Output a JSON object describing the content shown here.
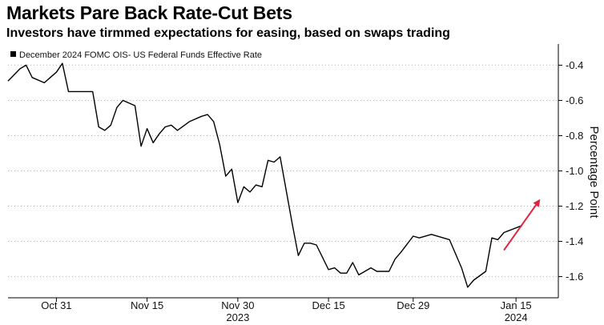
{
  "title": "Markets Pare Back Rate-Cut Bets",
  "subtitle": "Investors have tirmmed expectations for easing, based on swaps trading",
  "chart_data": {
    "type": "line",
    "title": "Markets Pare Back Rate-Cut Bets",
    "subtitle": "Investors have tirmmed expectations for easing, based on swaps trading",
    "ylabel": "Percentage Point",
    "xlabel": "",
    "ylim": [
      -1.72,
      -0.28
    ],
    "y_inverted": true,
    "y_axis_side": "right",
    "yticks": [
      -0.4,
      -0.6,
      -0.8,
      -1.0,
      -1.2,
      -1.4,
      -1.6
    ],
    "ytick_labels": [
      "-0.4",
      "-0.6",
      "-0.8",
      "-1.0",
      "-1.2",
      "-1.4",
      "-1.6"
    ],
    "xticks": [
      {
        "date": "2023-10-31",
        "label": "Oct 31"
      },
      {
        "date": "2023-11-15",
        "label": "Nov 15"
      },
      {
        "date": "2023-11-30",
        "label": "Nov 30"
      },
      {
        "date": "2023-12-15",
        "label": "Dec 15"
      },
      {
        "date": "2023-12-29",
        "label": "Dec 29"
      },
      {
        "date": "2024-01-15",
        "label": "Jan 15"
      }
    ],
    "year_labels": [
      {
        "date": "2023-11-30",
        "label": "2023"
      },
      {
        "date": "2024-01-15",
        "label": "2024"
      }
    ],
    "xlim": [
      "2023-10-23",
      "2024-01-22"
    ],
    "legend_position": "top-left",
    "grid": "horizontal",
    "series": [
      {
        "name": "December 2024 FOMC OIS- US Federal Funds Effective Rate",
        "color": "#000000",
        "points": [
          [
            "2023-10-23",
            -0.49
          ],
          [
            "2023-10-25",
            -0.42
          ],
          [
            "2023-10-26",
            -0.4
          ],
          [
            "2023-10-27",
            -0.47
          ],
          [
            "2023-10-29",
            -0.5
          ],
          [
            "2023-10-30",
            -0.47
          ],
          [
            "2023-10-31",
            -0.44
          ],
          [
            "2023-11-01",
            -0.39
          ],
          [
            "2023-11-02",
            -0.55
          ],
          [
            "2023-11-03",
            -0.55
          ],
          [
            "2023-11-06",
            -0.55
          ],
          [
            "2023-11-07",
            -0.75
          ],
          [
            "2023-11-08",
            -0.77
          ],
          [
            "2023-11-09",
            -0.74
          ],
          [
            "2023-11-10",
            -0.64
          ],
          [
            "2023-11-11",
            -0.6
          ],
          [
            "2023-11-13",
            -0.63
          ],
          [
            "2023-11-14",
            -0.86
          ],
          [
            "2023-11-15",
            -0.76
          ],
          [
            "2023-11-16",
            -0.84
          ],
          [
            "2023-11-17",
            -0.79
          ],
          [
            "2023-11-18",
            -0.75
          ],
          [
            "2023-11-19",
            -0.74
          ],
          [
            "2023-11-20",
            -0.77
          ],
          [
            "2023-11-22",
            -0.72
          ],
          [
            "2023-11-24",
            -0.69
          ],
          [
            "2023-11-25",
            -0.68
          ],
          [
            "2023-11-26",
            -0.72
          ],
          [
            "2023-11-27",
            -0.85
          ],
          [
            "2023-11-28",
            -1.03
          ],
          [
            "2023-11-29",
            -0.99
          ],
          [
            "2023-11-30",
            -1.18
          ],
          [
            "2023-12-01",
            -1.09
          ],
          [
            "2023-12-02",
            -1.12
          ],
          [
            "2023-12-03",
            -1.08
          ],
          [
            "2023-12-04",
            -1.09
          ],
          [
            "2023-12-05",
            -0.94
          ],
          [
            "2023-12-06",
            -0.95
          ],
          [
            "2023-12-07",
            -0.92
          ],
          [
            "2023-12-09",
            -1.3
          ],
          [
            "2023-12-10",
            -1.48
          ],
          [
            "2023-12-11",
            -1.41
          ],
          [
            "2023-12-12",
            -1.41
          ],
          [
            "2023-12-13",
            -1.42
          ],
          [
            "2023-12-15",
            -1.56
          ],
          [
            "2023-12-16",
            -1.55
          ],
          [
            "2023-12-17",
            -1.58
          ],
          [
            "2023-12-18",
            -1.58
          ],
          [
            "2023-12-19",
            -1.52
          ],
          [
            "2023-12-20",
            -1.59
          ],
          [
            "2023-12-22",
            -1.55
          ],
          [
            "2023-12-23",
            -1.57
          ],
          [
            "2023-12-25",
            -1.57
          ],
          [
            "2023-12-26",
            -1.5
          ],
          [
            "2023-12-27",
            -1.46
          ],
          [
            "2023-12-29",
            -1.37
          ],
          [
            "2023-12-30",
            -1.38
          ],
          [
            "2024-01-01",
            -1.36
          ],
          [
            "2024-01-04",
            -1.39
          ],
          [
            "2024-01-06",
            -1.55
          ],
          [
            "2024-01-07",
            -1.66
          ],
          [
            "2024-01-08",
            -1.62
          ],
          [
            "2024-01-10",
            -1.57
          ],
          [
            "2024-01-11",
            -1.38
          ],
          [
            "2024-01-12",
            -1.39
          ],
          [
            "2024-01-13",
            -1.35
          ],
          [
            "2024-01-16",
            -1.31
          ]
        ]
      }
    ],
    "annotations": [
      {
        "type": "arrow",
        "color": "#e0243f",
        "from": [
          "2024-01-13",
          -1.45
        ],
        "to": [
          "2024-01-19",
          -1.16
        ]
      }
    ]
  }
}
